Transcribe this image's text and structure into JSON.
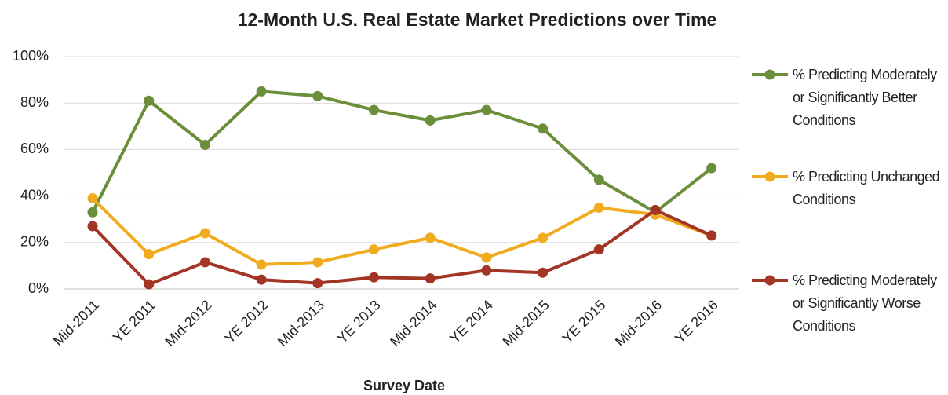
{
  "chart_data": {
    "type": "line",
    "title": "12-Month U.S. Real Estate Market Predictions over Time",
    "x_label": "Survey Date",
    "categories": [
      "Mid-2011",
      "YE 2011",
      "Mid-2012",
      "YE 2012",
      "Mid-2013",
      "YE 2013",
      "Mid-2014",
      "YE 2014",
      "Mid-2015",
      "YE 2015",
      "Mid-2016",
      "YE 2016"
    ],
    "series": [
      {
        "name": "% Predicting Moderately or Significantly Better Conditions",
        "color": "#6b8e3a",
        "values": [
          33,
          81,
          62,
          85,
          83,
          77,
          72.5,
          77,
          69,
          47,
          33,
          52
        ]
      },
      {
        "name": "% Predicting Unchanged Conditions",
        "color": "#f0ac1e",
        "values": [
          39,
          15,
          24,
          10.5,
          11.5,
          17,
          22,
          13.5,
          22,
          35,
          32,
          23
        ]
      },
      {
        "name": "% Predicting Moderately or Significantly Worse Conditions",
        "color": "#a33525",
        "values": [
          27,
          2,
          11.5,
          4,
          2.5,
          5,
          4.5,
          8,
          7,
          17,
          34,
          23
        ]
      }
    ],
    "ylim": [
      0,
      100
    ],
    "yticks": [
      {
        "value": 0,
        "label": "0%"
      },
      {
        "value": 20,
        "label": "20%"
      },
      {
        "value": 40,
        "label": "40%"
      },
      {
        "value": 60,
        "label": "60%"
      },
      {
        "value": 80,
        "label": "80%"
      },
      {
        "value": 100,
        "label": "100%"
      }
    ],
    "grid": true,
    "legend": "right"
  }
}
